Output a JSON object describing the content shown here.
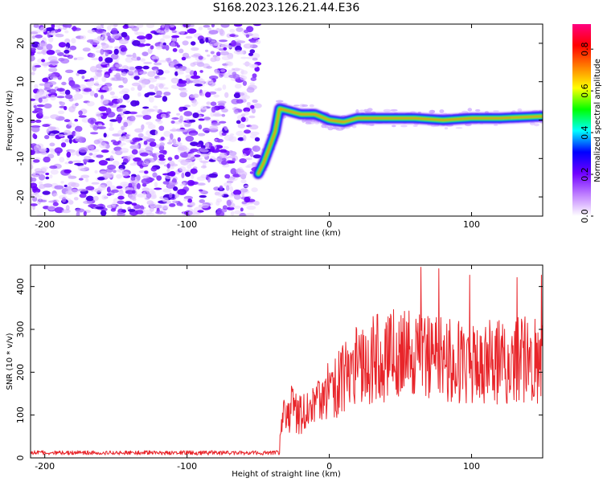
{
  "title": "S168.2023.126.21.44.E36",
  "chart_data": [
    {
      "type": "heatmap",
      "xlabel": "Height of straight line (km)",
      "ylabel": "Frequency (Hz)",
      "xlim": [
        -210,
        150
      ],
      "ylim": [
        -25,
        25
      ],
      "xticks": [
        -200,
        -100,
        0,
        100
      ],
      "yticks": [
        -20,
        -10,
        0,
        10,
        20
      ],
      "noise_region_x": [
        -210,
        -50
      ],
      "ridge": [
        {
          "x": -50,
          "y": -14
        },
        {
          "x": -46,
          "y": -11
        },
        {
          "x": -42,
          "y": -7
        },
        {
          "x": -38,
          "y": -3
        },
        {
          "x": -35,
          "y": 3
        },
        {
          "x": -30,
          "y": 2.5
        },
        {
          "x": -20,
          "y": 1.5
        },
        {
          "x": -10,
          "y": 1.5
        },
        {
          "x": 0,
          "y": 0
        },
        {
          "x": 10,
          "y": -0.5
        },
        {
          "x": 20,
          "y": 0.5
        },
        {
          "x": 40,
          "y": 0.5
        },
        {
          "x": 60,
          "y": 0.5
        },
        {
          "x": 80,
          "y": 0
        },
        {
          "x": 100,
          "y": 0.5
        },
        {
          "x": 120,
          "y": 0.5
        },
        {
          "x": 150,
          "y": 1
        }
      ],
      "colorbar": {
        "label": "Normalized spectral amplitude",
        "range": [
          0,
          0.92
        ],
        "ticks": [
          "0.0",
          "0.2",
          "0.4",
          "0.6",
          "0.8"
        ],
        "colors": [
          "#ffffff",
          "#c080ff",
          "#7000ff",
          "#0000ff",
          "#00ffff",
          "#00ff00",
          "#ffff00",
          "#ff8000",
          "#ff0000",
          "#ff0080"
        ]
      }
    },
    {
      "type": "line",
      "xlabel": "Height of straight line (km)",
      "ylabel": "SNR (10 * v/v)",
      "xlim": [
        -210,
        150
      ],
      "ylim": [
        0,
        450
      ],
      "xticks": [
        -200,
        -100,
        0,
        100
      ],
      "yticks": [
        0,
        100,
        200,
        300,
        400
      ],
      "color": "#e8252a",
      "series": [
        {
          "x": [
            -210,
            -190,
            -170,
            -150,
            -130,
            -110,
            -90,
            -70,
            -50,
            -35,
            -34,
            -32,
            -30,
            -28,
            -26,
            -24,
            -22,
            -20,
            -18,
            -16,
            -14,
            -12,
            -10,
            -8,
            -6,
            -4,
            -2,
            0,
            5,
            10,
            15,
            20,
            25,
            30,
            35,
            40,
            45,
            50,
            55,
            60,
            65,
            70,
            75,
            80,
            85,
            90,
            95,
            100,
            105,
            110,
            115,
            120,
            125,
            130,
            135,
            140,
            145,
            150
          ],
          "y": [
            12,
            12,
            12,
            12,
            12,
            12,
            12,
            12,
            12,
            12,
            60,
            105,
            110,
            100,
            125,
            105,
            100,
            100,
            115,
            120,
            120,
            130,
            130,
            140,
            140,
            145,
            150,
            160,
            170,
            185,
            200,
            215,
            225,
            230,
            235,
            235,
            240,
            240,
            240,
            240,
            240,
            235,
            240,
            235,
            230,
            230,
            230,
            230,
            235,
            225,
            225,
            225,
            230,
            225,
            230,
            225,
            230,
            230
          ]
        }
      ]
    }
  ]
}
